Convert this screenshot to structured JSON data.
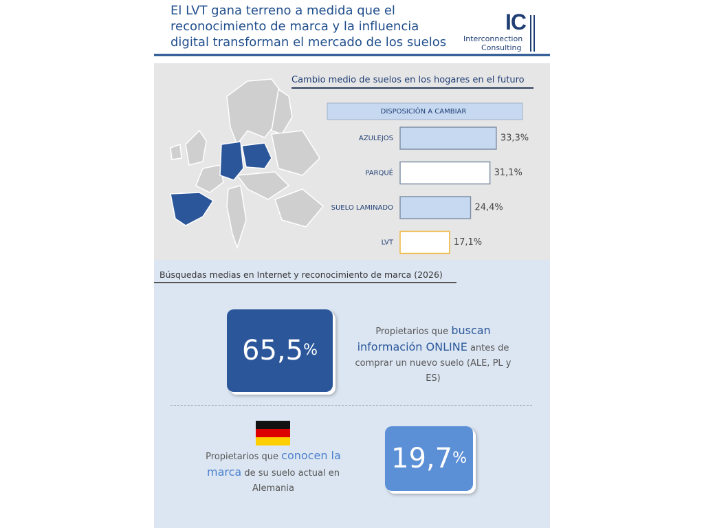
{
  "header": {
    "title": "El LVT gana terreno a medida que el reconocimiento de marca y la influencia digital transforman el mercado de los suelos",
    "logo": {
      "mark": "IC",
      "line1": "Interconnection",
      "line2": "Consulting"
    }
  },
  "survey": {
    "title": "Cambio medio de suelos en los hogares en el futuro",
    "column_header": "DISPOSICIÓN A CAMBIAR",
    "categories": [
      "AZULEJOS",
      "PARQUÉ",
      "SUELO LAMINADO",
      "LVT"
    ],
    "values": [
      33.3,
      31.1,
      24.4,
      17.1
    ],
    "value_labels": [
      "33,3%",
      "31,1%",
      "24,4%",
      "17,1%"
    ],
    "colors": [
      "#c6d9f1",
      "#ffffff",
      "#c6d9f1",
      "#ffffff"
    ],
    "borders": [
      "#7f8fa6",
      "#7f8fa6",
      "#7f8fa6",
      "#f0b840"
    ]
  },
  "search": {
    "title": "Búsquedas medias en Internet y reconocimiento de marca (2026)",
    "stat1": {
      "value": "65,5",
      "unit": "%",
      "text": [
        "Propietarios que ",
        "buscan información ONLINE",
        " antes de comprar un nuevo suelo (ALE, PL y ES)"
      ]
    },
    "stat2": {
      "value": "19,7",
      "unit": "%",
      "text": [
        "Propietarios que ",
        "conocen la marca",
        " de su suelo actual en Alemania"
      ]
    }
  }
}
